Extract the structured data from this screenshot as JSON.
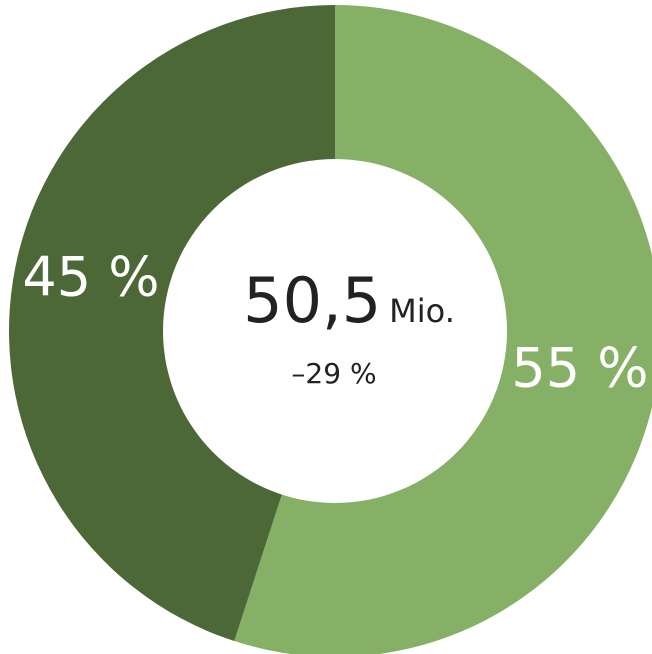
{
  "chart_data": {
    "type": "pie",
    "donut": true,
    "slices": [
      {
        "value": 55,
        "label": "55 %",
        "color": "#85b066"
      },
      {
        "value": 45,
        "label": "45 %",
        "color": "#4d6837"
      }
    ],
    "center": {
      "value": "50,5",
      "unit": "Mio.",
      "change": "–29 %"
    }
  }
}
